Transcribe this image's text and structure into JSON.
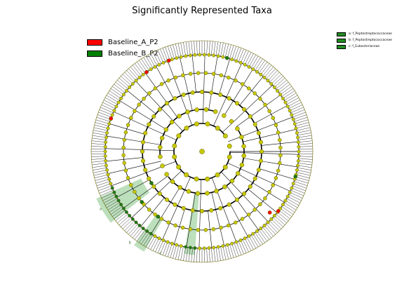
{
  "title": "Significantly Represented Taxa",
  "legend": [
    {
      "label": "Baseline_A_P2",
      "color": "#ff0000"
    },
    {
      "label": "Baseline_B_P2",
      "color": "#008000"
    }
  ],
  "clade_legend": [
    {
      "label": "a: f_Peptostreptococcaceae",
      "color": "#228b22"
    },
    {
      "label": "b: f_Peptostreptococcaceae",
      "color": "#228b22"
    },
    {
      "label": "c: f_Eubacteriaceae",
      "color": "#228b22"
    }
  ],
  "clade_labels": [
    "a",
    "b",
    "c"
  ],
  "colors": {
    "node_default": "#c8c800",
    "node_stroke": "#5a5a00",
    "ring_stroke": "#000000",
    "highlight_fill": "#8fc98f",
    "enriched_a": "#ff0000",
    "enriched_b": "#1a7a1a"
  }
}
